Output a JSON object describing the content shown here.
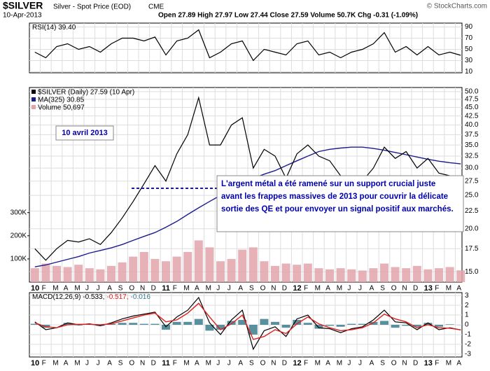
{
  "header": {
    "symbol": "$SILVER",
    "name": "Silver - Spot Price (EOD)",
    "exchange": "CME",
    "date": "10-Apr-2013",
    "credit": "© StockCharts.com",
    "quote": "Open 27.89 High 27.97 Low 27.44 Close 27.59 Volume 50.7K Chg -0.31 (-1.09%)"
  },
  "chart_data": [
    {
      "type": "line",
      "legend": [
        "RSI(14) 39.40"
      ],
      "ylim": [
        8,
        97
      ],
      "yticks": [
        10,
        30,
        50,
        70,
        90
      ],
      "grid": true,
      "series": [
        {
          "name": "RSI(14)",
          "color": "#000000",
          "values": [
            45,
            35,
            55,
            60,
            50,
            55,
            45,
            60,
            70,
            70,
            65,
            72,
            40,
            65,
            70,
            85,
            35,
            45,
            60,
            65,
            30,
            50,
            45,
            40,
            60,
            65,
            40,
            45,
            35,
            45,
            50,
            60,
            80,
            45,
            55,
            40,
            55,
            40,
            45,
            39.4
          ]
        }
      ]
    },
    {
      "type": "line",
      "log": true,
      "ylim": [
        14,
        51.4
      ],
      "yticks": [
        {
          "value": 50,
          "label": "50.0"
        },
        47.5,
        {
          "value": 45,
          "label": "45.0"
        },
        42.5,
        {
          "value": 40,
          "label": "40.0"
        },
        37.5,
        {
          "value": 35,
          "label": "35.0"
        },
        32.5,
        {
          "value": 30,
          "label": "30.0"
        },
        27.5,
        {
          "value": 25,
          "label": "25.0"
        },
        22.5,
        {
          "value": 20,
          "label": "20.0"
        },
        17.5,
        {
          "value": 15,
          "label": "15.0"
        }
      ],
      "y2lim": [
        0,
        840000
      ],
      "y2ticks": [
        {
          "value": 100000,
          "label": "100K"
        },
        {
          "value": 200000,
          "label": "200K"
        },
        {
          "value": 300000,
          "label": "300K"
        }
      ],
      "grid": true,
      "categories": [
        "10",
        "F",
        "M",
        "A",
        "M",
        "J",
        "J",
        "A",
        "S",
        "O",
        "N",
        "D",
        "11",
        "F",
        "M",
        "A",
        "M",
        "J",
        "J",
        "A",
        "S",
        "O",
        "N",
        "D",
        "12",
        "F",
        "M",
        "A",
        "M",
        "J",
        "J",
        "A",
        "S",
        "O",
        "N",
        "D",
        "13",
        "F",
        "M",
        "A"
      ],
      "support_level": 26.2,
      "annotations": {
        "date_box": "10 avril 2013",
        "note": [
          "L'argent métal a été ramené sur un support crucial juste",
          "avant les frappes massives de 2013 pour couvrir la délicate",
          "sortie des QE et pour envoyer un signal positif aux marchés."
        ]
      },
      "series": [
        {
          "name": "Volume 50,697",
          "color": "#e3a3ab",
          "kind": "bar",
          "axis": "y2",
          "values": [
            60000,
            80000,
            70000,
            65000,
            75000,
            60000,
            55000,
            70000,
            85000,
            110000,
            130000,
            100000,
            90000,
            110000,
            130000,
            180000,
            150000,
            90000,
            100000,
            140000,
            150000,
            90000,
            70000,
            80000,
            75000,
            80000,
            60000,
            55000,
            60000,
            55000,
            50000,
            60000,
            80000,
            65000,
            60000,
            70000,
            55000,
            60000,
            65000,
            50697
          ]
        },
        {
          "name": "MA(325) 30.85",
          "color": "#1c1c8c",
          "values": [
            15.5,
            15.7,
            16,
            16.3,
            16.6,
            17,
            17.3,
            17.6,
            18,
            18.5,
            19,
            19.5,
            20.2,
            21,
            22,
            23,
            24,
            25,
            26,
            27,
            28,
            28.8,
            29.5,
            30.5,
            31.5,
            32.5,
            33.5,
            34,
            34.3,
            34.5,
            34.5,
            34.2,
            33.8,
            33.3,
            32.8,
            32.3,
            31.8,
            31.4,
            31.1,
            30.85
          ]
        },
        {
          "name": "$SILVER (Daily) 27.59 (10 Apr)",
          "color": "#000000",
          "values": [
            17.5,
            16.2,
            17.5,
            18.5,
            18.3,
            18.7,
            18.0,
            19.5,
            21.5,
            24.0,
            27.0,
            30.5,
            27.5,
            33.0,
            37.5,
            48.0,
            35.0,
            35.0,
            40.0,
            42.0,
            30.0,
            34.0,
            32.5,
            28.0,
            33.0,
            35.0,
            32.5,
            31.5,
            28.5,
            27.5,
            27.5,
            30.0,
            34.5,
            32.0,
            33.5,
            30.0,
            32.0,
            29.0,
            28.5,
            27.59
          ]
        }
      ]
    },
    {
      "type": "line",
      "legend": [
        "MACD(12,26,9) -0.533,",
        "-0.517,",
        "-0.016"
      ],
      "ylim": [
        -3.3,
        3.3
      ],
      "yticks": [
        -3,
        -2,
        -1,
        0,
        1,
        2,
        3
      ],
      "grid": true,
      "series": [
        {
          "name": "Histogram",
          "color": "#3b7d8c",
          "kind": "bar",
          "values": [
            0.1,
            -0.3,
            0,
            0.2,
            -0.05,
            0.05,
            -0.1,
            0.1,
            0.2,
            0.2,
            0.1,
            0.1,
            -0.5,
            0.3,
            0.3,
            0.6,
            -0.6,
            -0.5,
            0.4,
            0.5,
            -1.0,
            0.6,
            0.3,
            -0.3,
            0.5,
            0.2,
            -0.4,
            -0.1,
            -0.2,
            0.1,
            0.1,
            0.3,
            0.4,
            -0.3,
            -0.1,
            -0.2,
            0.2,
            -0.2,
            0.05,
            -0.016
          ]
        },
        {
          "name": "MACD",
          "color": "#000000",
          "values": [
            0.3,
            -0.5,
            -0.3,
            0.2,
            0,
            0.1,
            -0.1,
            0.2,
            0.6,
            0.9,
            1.1,
            1.3,
            -0.2,
            0.8,
            1.5,
            2.8,
            0.2,
            -1.0,
            0.5,
            1.5,
            -2.5,
            -0.6,
            -0.2,
            -1.2,
            0.6,
            1.0,
            -0.3,
            -0.4,
            -0.8,
            -0.4,
            -0.2,
            0.5,
            1.5,
            0.3,
            0.2,
            -0.5,
            0.2,
            -0.5,
            -0.3,
            -0.533
          ]
        },
        {
          "name": "Signal",
          "color": "#e02020",
          "values": [
            0.2,
            -0.2,
            -0.3,
            0,
            0.05,
            0.05,
            0,
            0.1,
            0.4,
            0.7,
            1.0,
            1.2,
            0.3,
            0.5,
            1.2,
            2.2,
            0.8,
            -0.5,
            0.1,
            1.0,
            -1.5,
            -1.2,
            -0.5,
            -0.9,
            0.1,
            0.8,
            0.1,
            -0.3,
            -0.6,
            -0.5,
            -0.3,
            0.2,
            1.1,
            0.6,
            0.3,
            -0.3,
            0,
            -0.3,
            -0.35,
            -0.517
          ]
        }
      ]
    }
  ]
}
